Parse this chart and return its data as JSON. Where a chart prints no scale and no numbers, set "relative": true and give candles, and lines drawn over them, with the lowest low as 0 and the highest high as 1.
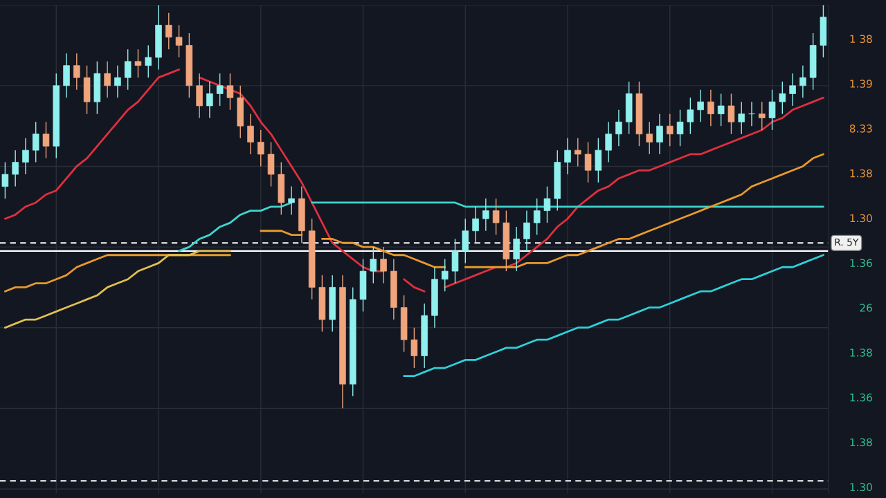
{
  "chart_data": {
    "type": "candlestick",
    "relative": true,
    "grid": true,
    "tick_labels": false,
    "annotations": [
      "1 38",
      "1.39",
      "8.33",
      "1.38",
      "1.30",
      "1.36",
      "26",
      "1.38",
      "1.36",
      "1.38",
      "1.30"
    ],
    "categories": [
      null,
      null,
      null,
      null,
      null,
      null,
      null,
      null,
      null,
      null,
      null,
      null,
      null,
      null,
      null,
      null,
      null,
      null,
      null,
      null,
      null,
      null,
      null,
      null,
      null,
      null,
      null,
      null,
      null,
      null,
      null,
      null,
      null,
      null,
      null,
      null,
      null,
      null,
      null,
      null,
      null,
      null,
      null,
      null,
      null,
      null,
      null,
      null,
      null,
      null,
      null,
      null,
      null,
      null,
      null,
      null,
      null,
      null,
      null,
      null,
      null,
      null,
      null,
      null,
      null,
      null,
      null,
      null,
      null,
      null,
      null,
      null,
      null,
      null,
      null,
      null,
      null,
      null,
      null,
      null,
      null
    ],
    "ohlc": [
      [
        0.55,
        0.61,
        0.52,
        0.58
      ],
      [
        0.58,
        0.64,
        0.55,
        0.61
      ],
      [
        0.61,
        0.67,
        0.58,
        0.64
      ],
      [
        0.64,
        0.71,
        0.61,
        0.68
      ],
      [
        0.68,
        0.71,
        0.62,
        0.65
      ],
      [
        0.65,
        0.83,
        0.62,
        0.8
      ],
      [
        0.8,
        0.88,
        0.77,
        0.85
      ],
      [
        0.85,
        0.88,
        0.79,
        0.82
      ],
      [
        0.82,
        0.85,
        0.73,
        0.76
      ],
      [
        0.76,
        0.86,
        0.73,
        0.83
      ],
      [
        0.83,
        0.86,
        0.77,
        0.8
      ],
      [
        0.8,
        0.85,
        0.77,
        0.82
      ],
      [
        0.82,
        0.89,
        0.79,
        0.86
      ],
      [
        0.86,
        0.89,
        0.82,
        0.85
      ],
      [
        0.85,
        0.9,
        0.82,
        0.87
      ],
      [
        0.87,
        1.0,
        0.84,
        0.95
      ],
      [
        0.95,
        0.98,
        0.89,
        0.92
      ],
      [
        0.92,
        0.95,
        0.87,
        0.9
      ],
      [
        0.9,
        0.93,
        0.77,
        0.8
      ],
      [
        0.8,
        0.83,
        0.72,
        0.75
      ],
      [
        0.75,
        0.81,
        0.72,
        0.78
      ],
      [
        0.78,
        0.83,
        0.75,
        0.8
      ],
      [
        0.8,
        0.83,
        0.74,
        0.77
      ],
      [
        0.77,
        0.8,
        0.67,
        0.7
      ],
      [
        0.7,
        0.73,
        0.63,
        0.66
      ],
      [
        0.66,
        0.69,
        0.6,
        0.63
      ],
      [
        0.63,
        0.66,
        0.55,
        0.58
      ],
      [
        0.58,
        0.61,
        0.48,
        0.51
      ],
      [
        0.51,
        0.55,
        0.48,
        0.52
      ],
      [
        0.52,
        0.55,
        0.41,
        0.44
      ],
      [
        0.44,
        0.47,
        0.27,
        0.3
      ],
      [
        0.3,
        0.33,
        0.19,
        0.22
      ],
      [
        0.22,
        0.33,
        0.19,
        0.3
      ],
      [
        0.3,
        0.33,
        0.0,
        0.06
      ],
      [
        0.06,
        0.3,
        0.03,
        0.27
      ],
      [
        0.27,
        0.37,
        0.24,
        0.34
      ],
      [
        0.34,
        0.4,
        0.31,
        0.37
      ],
      [
        0.37,
        0.4,
        0.31,
        0.34
      ],
      [
        0.34,
        0.37,
        0.22,
        0.25
      ],
      [
        0.25,
        0.28,
        0.14,
        0.17
      ],
      [
        0.17,
        0.2,
        0.1,
        0.13
      ],
      [
        0.13,
        0.26,
        0.1,
        0.23
      ],
      [
        0.23,
        0.35,
        0.2,
        0.32
      ],
      [
        0.32,
        0.37,
        0.29,
        0.34
      ],
      [
        0.34,
        0.42,
        0.31,
        0.39
      ],
      [
        0.39,
        0.47,
        0.36,
        0.44
      ],
      [
        0.44,
        0.5,
        0.41,
        0.47
      ],
      [
        0.47,
        0.52,
        0.44,
        0.49
      ],
      [
        0.49,
        0.52,
        0.43,
        0.46
      ],
      [
        0.46,
        0.49,
        0.34,
        0.37
      ],
      [
        0.37,
        0.45,
        0.34,
        0.42
      ],
      [
        0.42,
        0.49,
        0.39,
        0.46
      ],
      [
        0.46,
        0.52,
        0.43,
        0.49
      ],
      [
        0.49,
        0.55,
        0.46,
        0.52
      ],
      [
        0.52,
        0.64,
        0.49,
        0.61
      ],
      [
        0.61,
        0.67,
        0.58,
        0.64
      ],
      [
        0.64,
        0.67,
        0.6,
        0.63
      ],
      [
        0.63,
        0.66,
        0.56,
        0.59
      ],
      [
        0.59,
        0.67,
        0.56,
        0.64
      ],
      [
        0.64,
        0.71,
        0.61,
        0.68
      ],
      [
        0.68,
        0.74,
        0.65,
        0.71
      ],
      [
        0.71,
        0.81,
        0.68,
        0.78
      ],
      [
        0.78,
        0.81,
        0.65,
        0.68
      ],
      [
        0.68,
        0.71,
        0.63,
        0.66
      ],
      [
        0.66,
        0.73,
        0.63,
        0.7
      ],
      [
        0.7,
        0.73,
        0.65,
        0.68
      ],
      [
        0.68,
        0.74,
        0.65,
        0.71
      ],
      [
        0.71,
        0.77,
        0.68,
        0.74
      ],
      [
        0.74,
        0.79,
        0.71,
        0.76
      ],
      [
        0.76,
        0.79,
        0.7,
        0.73
      ],
      [
        0.73,
        0.78,
        0.7,
        0.75
      ],
      [
        0.75,
        0.78,
        0.68,
        0.71
      ],
      [
        0.71,
        0.76,
        0.68,
        0.73
      ],
      [
        0.73,
        0.76,
        0.7,
        0.73
      ],
      [
        0.73,
        0.76,
        0.69,
        0.72
      ],
      [
        0.72,
        0.79,
        0.69,
        0.76
      ],
      [
        0.76,
        0.81,
        0.73,
        0.78
      ],
      [
        0.78,
        0.83,
        0.75,
        0.8
      ],
      [
        0.8,
        0.85,
        0.77,
        0.82
      ],
      [
        0.82,
        0.93,
        0.79,
        0.9
      ],
      [
        0.9,
        1.0,
        0.87,
        0.97
      ]
    ],
    "series": [
      {
        "type": "line",
        "color": "#e0303f",
        "values": [
          0.47,
          0.48,
          0.5,
          0.51,
          0.53,
          0.54,
          0.57,
          0.6,
          0.62,
          0.65,
          0.68,
          0.71,
          0.74,
          0.76,
          0.79,
          0.82,
          0.83,
          0.84,
          null,
          0.82,
          0.81,
          0.8,
          0.79,
          0.78,
          0.75,
          0.71,
          0.68,
          0.64,
          0.6,
          0.56,
          0.51,
          0.46,
          0.41,
          0.39,
          0.37,
          0.35,
          0.34,
          0.34,
          null,
          0.32,
          0.3,
          0.29,
          null,
          0.3,
          0.31,
          0.32,
          0.33,
          0.34,
          0.35,
          0.35,
          0.36,
          0.38,
          0.4,
          0.42,
          0.45,
          0.47,
          0.5,
          0.52,
          0.54,
          0.55,
          0.57,
          0.58,
          0.59,
          0.59,
          0.6,
          0.61,
          0.62,
          0.63,
          0.63,
          0.64,
          0.65,
          0.66,
          0.67,
          0.68,
          0.69,
          0.71,
          0.72,
          0.74,
          0.75,
          0.76,
          0.77
        ]
      },
      {
        "type": "line",
        "color": "#3fd6cf",
        "values": [
          null,
          null,
          null,
          null,
          null,
          null,
          null,
          null,
          null,
          null,
          null,
          null,
          null,
          null,
          null,
          null,
          null,
          0.39,
          0.4,
          0.42,
          0.43,
          0.45,
          0.46,
          0.48,
          0.49,
          0.49,
          0.5,
          0.5,
          0.51,
          null,
          0.51,
          0.51,
          0.51,
          0.51,
          0.51,
          0.51,
          0.51,
          0.51,
          0.51,
          0.51,
          0.51,
          0.51,
          0.51,
          0.51,
          0.51,
          0.5,
          0.5,
          0.5,
          0.5,
          0.5,
          0.5,
          0.5,
          0.5,
          0.5,
          0.5,
          0.5,
          0.5,
          0.5,
          0.5,
          0.5,
          0.5,
          0.5,
          0.5,
          0.5,
          0.5,
          0.5,
          0.5,
          0.5,
          0.5,
          0.5,
          0.5,
          0.5,
          0.5,
          0.5,
          0.5,
          0.5,
          0.5,
          0.5,
          0.5,
          0.5,
          0.5
        ]
      },
      {
        "type": "line",
        "color": "#e89a2c",
        "values": [
          0.29,
          0.3,
          0.3,
          0.31,
          0.31,
          0.32,
          0.33,
          0.35,
          0.36,
          0.37,
          0.38,
          0.38,
          0.38,
          0.38,
          0.38,
          0.38,
          0.38,
          0.38,
          0.38,
          0.38,
          0.38,
          0.38,
          0.38,
          null,
          null,
          0.44,
          0.44,
          0.44,
          0.43,
          0.43,
          null,
          0.42,
          0.42,
          0.41,
          0.41,
          0.4,
          0.4,
          0.39,
          0.38,
          0.38,
          0.37,
          0.36,
          0.35,
          0.35,
          null,
          0.35,
          0.35,
          0.35,
          0.35,
          0.35,
          0.35,
          0.36,
          0.36,
          0.36,
          0.37,
          0.38,
          0.38,
          0.39,
          0.4,
          0.41,
          0.42,
          0.42,
          0.43,
          0.44,
          0.45,
          0.46,
          0.47,
          0.48,
          0.49,
          0.5,
          0.51,
          0.52,
          0.53,
          0.55,
          0.56,
          0.57,
          0.58,
          0.59,
          0.6,
          0.62,
          0.63
        ]
      },
      {
        "type": "line",
        "color": "#e0c050",
        "values": [
          0.2,
          0.21,
          0.22,
          0.22,
          0.23,
          0.24,
          0.25,
          0.26,
          0.27,
          0.28,
          0.3,
          0.31,
          0.32,
          0.34,
          0.35,
          0.36,
          0.38,
          0.38,
          0.38,
          0.39,
          0.39,
          0.39,
          0.39,
          null,
          null,
          null,
          null,
          null,
          null,
          null,
          null,
          null,
          null,
          null,
          null,
          null,
          null,
          null,
          null,
          null,
          null,
          null,
          null,
          null,
          null,
          null,
          null,
          null,
          null,
          null,
          null,
          null,
          null,
          null,
          null,
          null,
          null,
          null,
          null,
          null,
          null,
          null,
          null,
          null,
          null,
          null,
          null,
          null,
          null,
          null,
          null,
          null,
          null,
          null,
          null,
          null,
          null,
          null,
          null,
          null,
          null
        ]
      },
      {
        "type": "line",
        "color": "#2fd0d8",
        "values": [
          null,
          null,
          null,
          null,
          null,
          null,
          null,
          null,
          null,
          null,
          null,
          null,
          null,
          null,
          null,
          null,
          null,
          null,
          null,
          null,
          null,
          null,
          null,
          null,
          null,
          null,
          null,
          null,
          null,
          null,
          null,
          null,
          null,
          null,
          null,
          null,
          null,
          null,
          null,
          0.08,
          0.08,
          0.09,
          0.1,
          0.1,
          0.11,
          0.12,
          0.12,
          0.13,
          0.14,
          0.15,
          0.15,
          0.16,
          0.17,
          0.17,
          0.18,
          0.19,
          0.2,
          0.2,
          0.21,
          0.22,
          0.22,
          0.23,
          0.24,
          0.25,
          0.25,
          0.26,
          0.27,
          0.28,
          0.29,
          0.29,
          0.3,
          0.31,
          0.32,
          0.32,
          0.33,
          0.34,
          0.35,
          0.35,
          0.36,
          0.37,
          0.38
        ]
      }
    ],
    "ref_lines": [
      {
        "axis": "y",
        "value": 0.41,
        "label": "R. 5Y",
        "color": "#ffffff",
        "line_style": "dashed"
      },
      {
        "axis": "y",
        "value": 0.39,
        "label": null,
        "color": "#ffffff",
        "line_style": "solid"
      },
      {
        "axis": "y",
        "value": -0.18,
        "label": null,
        "color": "#ffffff",
        "line_style": "dashed"
      }
    ]
  }
}
